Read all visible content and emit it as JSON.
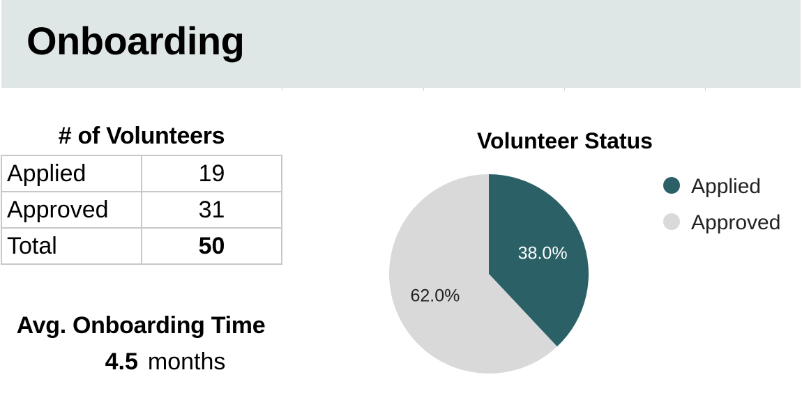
{
  "page": {
    "title": "Onboarding"
  },
  "volunteers": {
    "heading": "# of Volunteers",
    "rows": [
      {
        "label": "Applied",
        "value": "19"
      },
      {
        "label": "Approved",
        "value": "31"
      },
      {
        "label": "Total",
        "value": "50"
      }
    ]
  },
  "onboarding_time": {
    "heading": "Avg. Onboarding Time",
    "value": "4.5",
    "unit": "months"
  },
  "colors": {
    "accent": "#2b6166",
    "header_band": "#dfe6e6",
    "approved_slice": "#d9d9d9"
  },
  "chart_data": {
    "type": "pie",
    "title": "Volunteer Status",
    "legend_position": "right",
    "series": [
      {
        "name": "Applied",
        "value": 19,
        "percent_label": "38.0%",
        "color": "#2b6166"
      },
      {
        "name": "Approved",
        "value": 31,
        "percent_label": "62.0%",
        "color": "#d9d9d9"
      }
    ]
  }
}
